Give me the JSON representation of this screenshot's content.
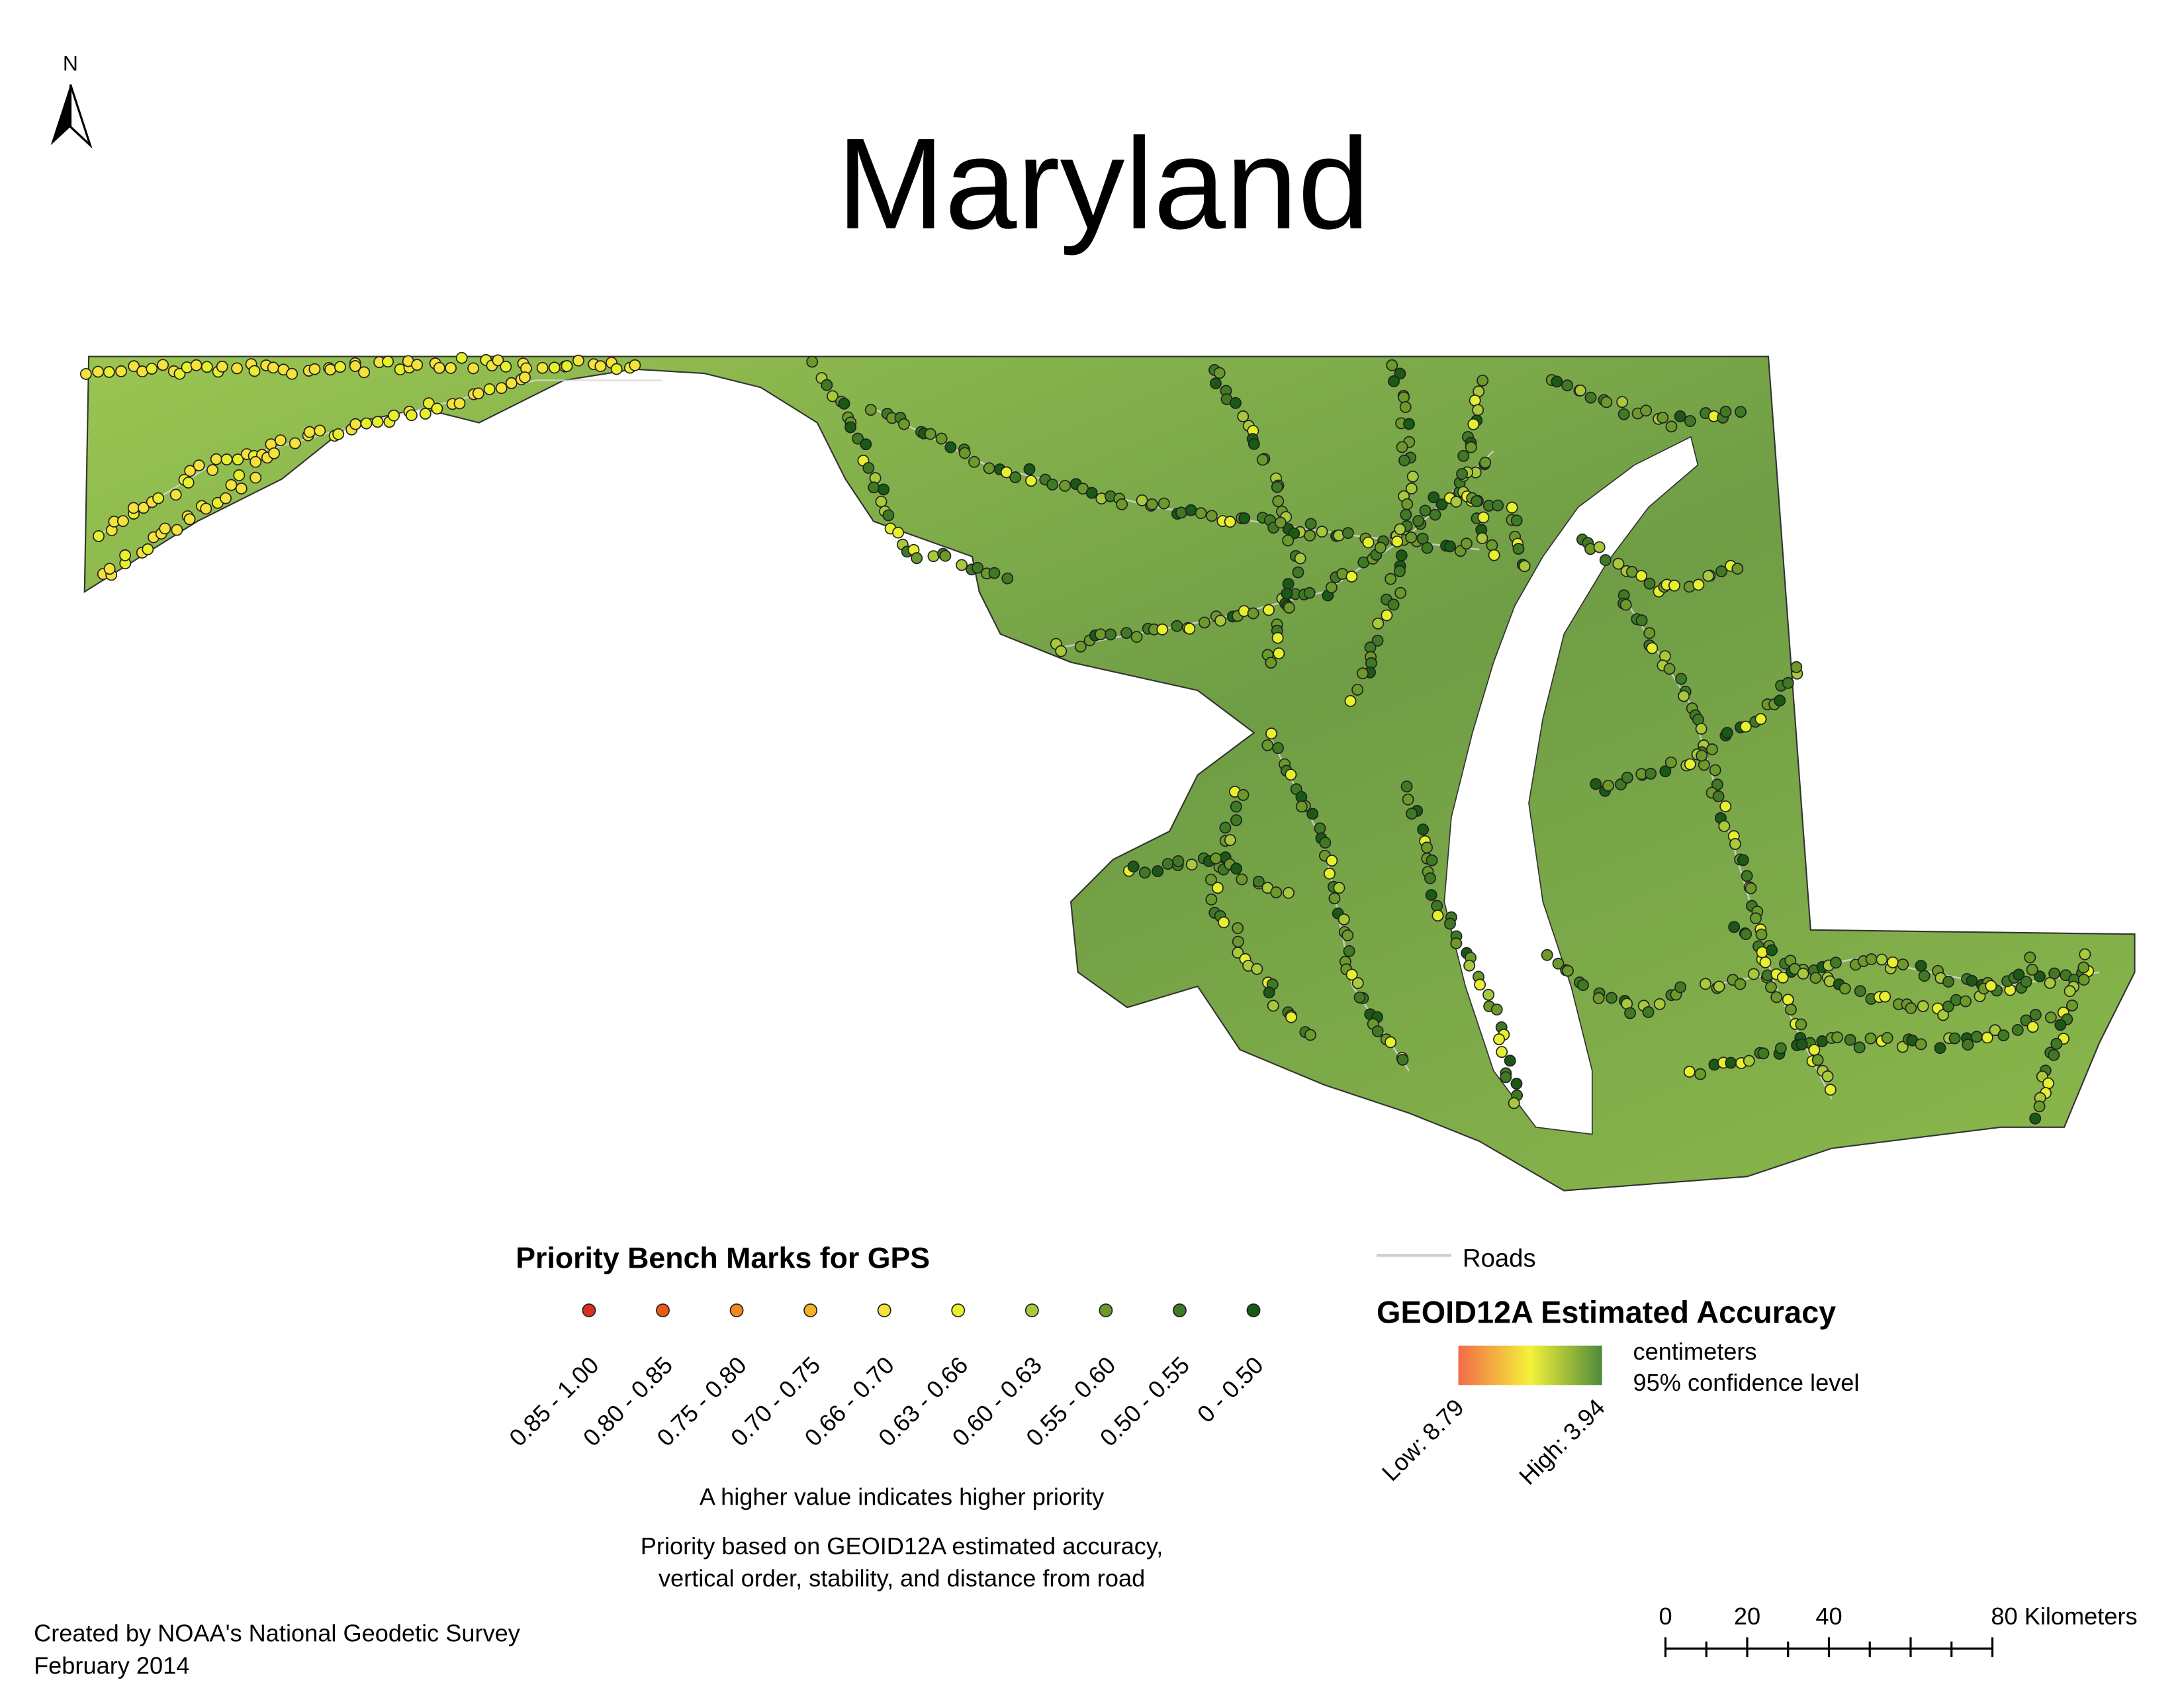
{
  "north_label": "N",
  "title": "Maryland",
  "legend": {
    "title": "Priority Bench Marks for GPS",
    "classes": [
      {
        "label": "0.85 - 1.00",
        "color": "#d7301f"
      },
      {
        "label": "0.80 - 0.85",
        "color": "#e8591a"
      },
      {
        "label": "0.75 - 0.80",
        "color": "#f08a1d"
      },
      {
        "label": "0.70 - 0.75",
        "color": "#f5b025"
      },
      {
        "label": "0.66 - 0.70",
        "color": "#f5e23a"
      },
      {
        "label": "0.63 - 0.66",
        "color": "#e6f02c"
      },
      {
        "label": "0.60 - 0.63",
        "color": "#a8c93a"
      },
      {
        "label": "0.55 - 0.60",
        "color": "#6c9a2a"
      },
      {
        "label": "0.50 - 0.55",
        "color": "#3f7a23"
      },
      {
        "label": "0 - 0.50",
        "color": "#1a5a14"
      }
    ],
    "note": "A higher value indicates higher priority",
    "basis": [
      "Priority based on GEOID12A estimated accuracy,",
      "vertical order, stability, and distance from road"
    ]
  },
  "roads_label": "Roads",
  "accuracy": {
    "title": "GEOID12A Estimated Accuracy",
    "unit": [
      "centimeters",
      "95% confidence level"
    ],
    "low": "Low: 8.79",
    "high": "High: 3.94"
  },
  "scale_bar": [
    "0",
    "20",
    "40",
    "80 Kilometers"
  ],
  "credits": [
    "Created by NOAA's National Geodetic Survey",
    "February 2014"
  ]
}
